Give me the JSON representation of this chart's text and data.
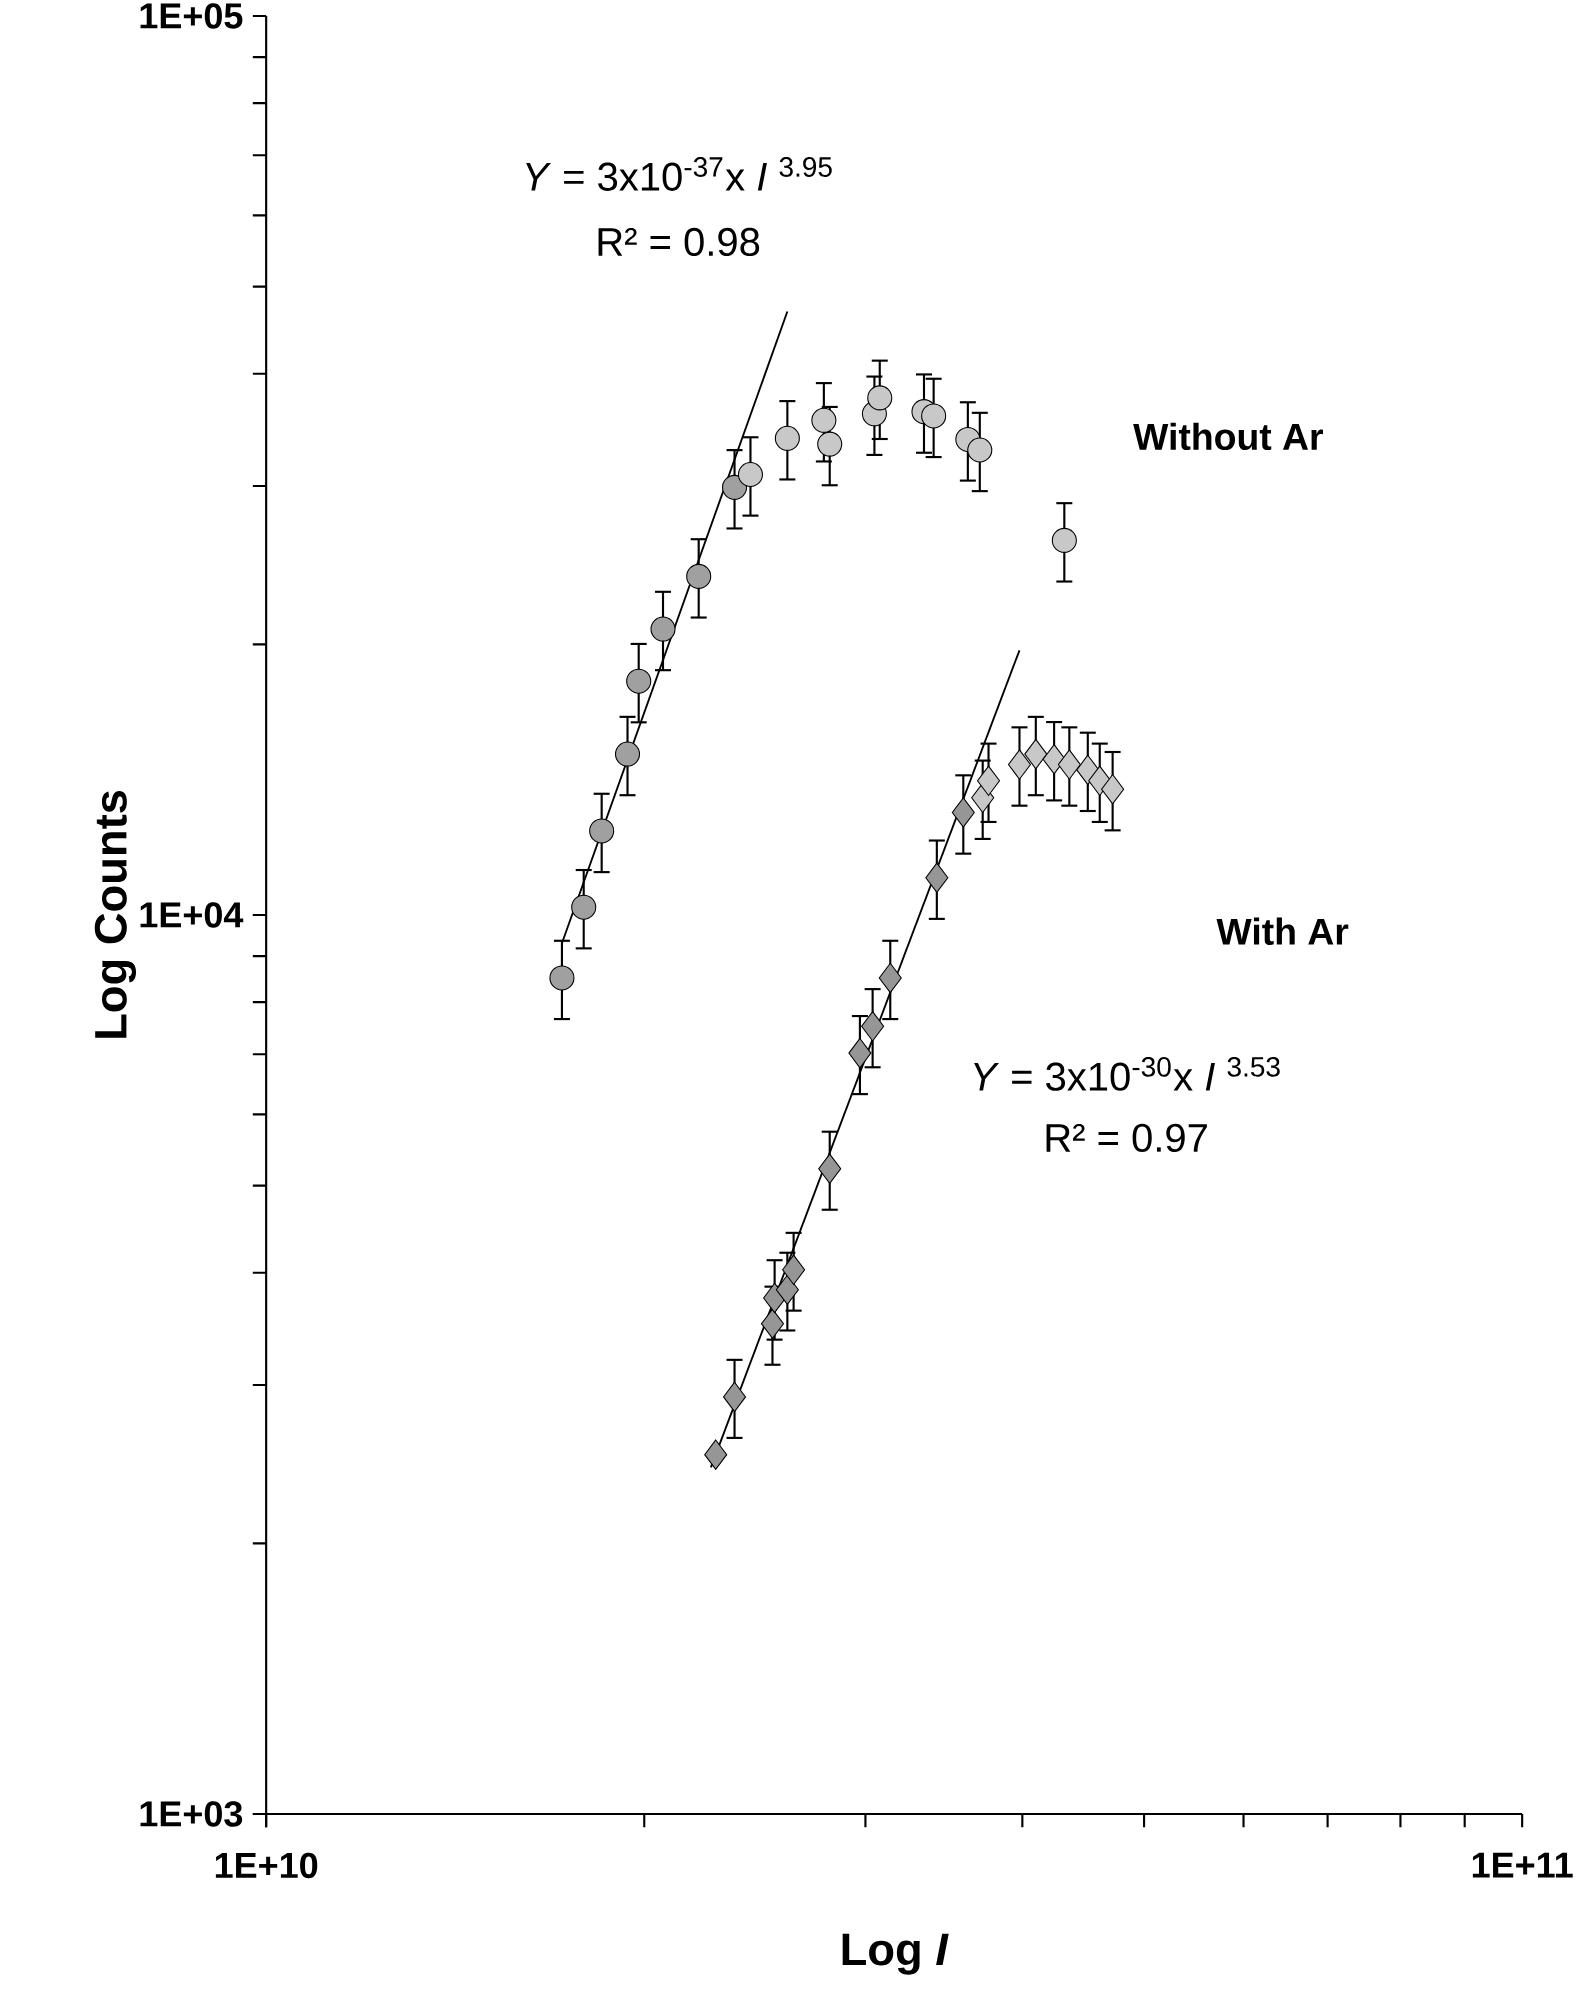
{
  "chart_data": {
    "type": "scatter",
    "xlabel": "Log *I*",
    "ylabel": "Log Counts",
    "log": "xy",
    "grid": false,
    "xlim": [
      10000000000.0,
      100000000000.0
    ],
    "ylim": [
      1000,
      100000
    ],
    "xticks": [
      {
        "value": 10000000000.0,
        "label": "1E+10"
      },
      {
        "value": 100000000000.0,
        "label": "1E+11"
      }
    ],
    "yticks": [
      {
        "value": 1000,
        "label": "1E+03"
      },
      {
        "value": 10000,
        "label": "1E+04"
      },
      {
        "value": 100000,
        "label": "1E+05"
      }
    ],
    "annotations": [
      "*Y* = 3x10$^{-37}$x *I* $^{3.95}$",
      "R² = 0.98",
      "*Y* = 3x10$^{-30}$x *I* $^{3.53}$",
      "R² = 0.97"
    ],
    "series": [
      {
        "name": "Without Ar",
        "marker": "circle",
        "colors": [
          "#a0a0a0",
          "#a0a0a0",
          "#a0a0a0",
          "#a0a0a0",
          "#a0a0a0",
          "#a0a0a0",
          "#a0a0a0",
          "#a0a0a0",
          "#c8c8c8",
          "#c8c8c8",
          "#c8c8c8",
          "#c8c8c8",
          "#c8c8c8",
          "#c8c8c8",
          "#c8c8c8",
          "#c8c8c8",
          "#c8c8c8",
          "#c8c8c8",
          "#c8c8c8"
        ],
        "x": [
          17200000000.0,
          17900000000.0,
          18500000000.0,
          19400000000.0,
          19800000000.0,
          20700000000.0,
          22100000000.0,
          23600000000.0,
          24300000000.0,
          26000000000.0,
          27800000000.0,
          28100000000.0,
          30500000000.0,
          30800000000.0,
          33400000000.0,
          34000000000.0,
          36200000000.0,
          37000000000.0,
          43200000000.0
        ],
        "values": [
          8510,
          10200,
          12400,
          15100,
          18200,
          20800,
          23800,
          29900,
          30900,
          33900,
          35500,
          33400,
          36100,
          37600,
          36300,
          35900,
          33800,
          32900,
          26100
        ],
        "errors": [
          850,
          1020,
          1240,
          1510,
          1820,
          2080,
          2380,
          2990,
          3090,
          3390,
          3550,
          3340,
          3610,
          3760,
          3630,
          3590,
          3380,
          3290,
          2610
        ]
      },
      {
        "name": "With Ar",
        "marker": "diamond",
        "colors": [
          "#969696",
          "#969696",
          "#969696",
          "#969696",
          "#969696",
          "#969696",
          "#969696",
          "#969696",
          "#969696",
          "#969696",
          "#969696",
          "#969696",
          "#c8c8c8",
          "#c8c8c8",
          "#c8c8c8",
          "#c8c8c8",
          "#c8c8c8",
          "#c8c8c8",
          "#c8c8c8",
          "#c8c8c8",
          "#c8c8c8"
        ],
        "x": [
          22800000000.0,
          23600000000.0,
          25300000000.0,
          25400000000.0,
          26000000000.0,
          26300000000.0,
          28100000000.0,
          29700000000.0,
          30400000000.0,
          31400000000.0,
          34200000000.0,
          35900000000.0,
          37200000000.0,
          37600000000.0,
          39800000000.0,
          41000000000.0,
          42400000000.0,
          43600000000.0,
          45100000000.0,
          46100000000.0,
          47200000000.0
        ],
        "values": [
          2510,
          2910,
          3510,
          3750,
          3830,
          4030,
          5220,
          7020,
          7520,
          8510,
          11000,
          13000,
          13500,
          14100,
          14700,
          15100,
          14900,
          14700,
          14500,
          14100,
          13800
        ],
        "errors": [
          null,
          290,
          350,
          380,
          380,
          400,
          520,
          700,
          750,
          850,
          1100,
          1300,
          1350,
          1410,
          1470,
          1510,
          1490,
          1470,
          1450,
          1410,
          1380
        ]
      },
      {
        "type": "line",
        "marker": "none",
        "line_style": "solid",
        "color": "#000000",
        "x": [
          17200000000.0,
          26000000000.0
        ],
        "values": [
          9300,
          46900
        ]
      },
      {
        "type": "line",
        "marker": "none",
        "line_style": "solid",
        "color": "#000000",
        "x": [
          22600000000.0,
          39800000000.0
        ],
        "values": [
          2430,
          19700
        ]
      }
    ]
  }
}
